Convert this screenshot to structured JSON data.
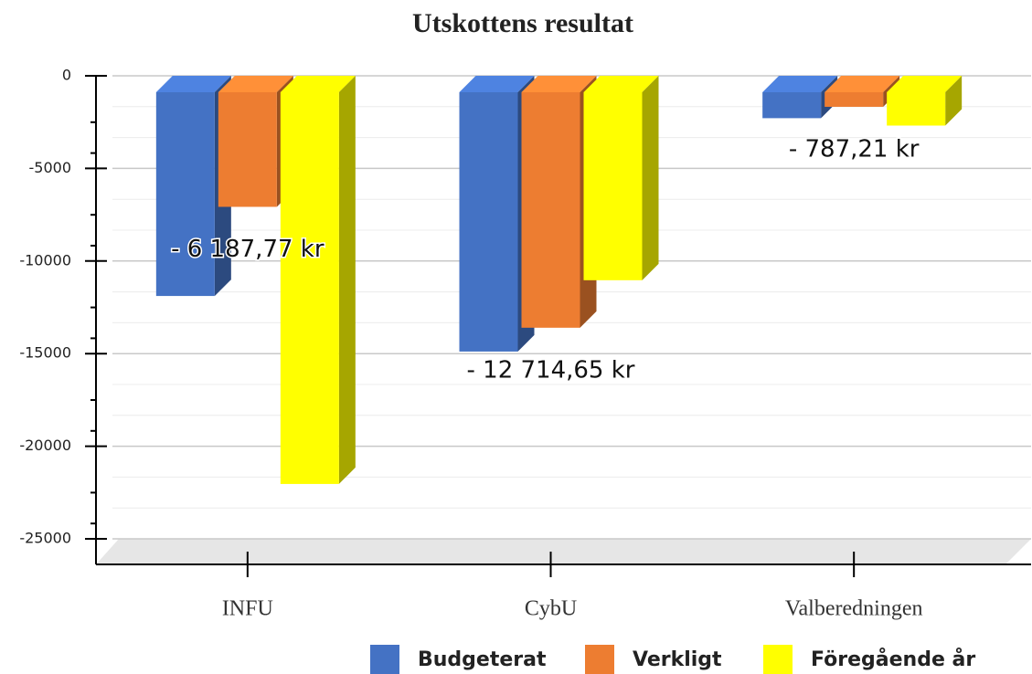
{
  "chart_data": {
    "type": "bar3d",
    "title": "Utskottens resultat",
    "categories": [
      "INFU",
      "CybU",
      "Valberedningen"
    ],
    "series": [
      {
        "name": "Budgeterat",
        "color": "#4472c4",
        "values": [
          -11000,
          -14000,
          -1400
        ]
      },
      {
        "name": "Verkligt",
        "color": "#ed7d31",
        "values": [
          -6187.77,
          -12714.65,
          -787.21
        ],
        "value_labels": [
          "- 6 187,77 kr",
          "- 12 714,65 kr",
          "- 787,21 kr"
        ]
      },
      {
        "name": "Föregående år",
        "color": "#ffff00",
        "values": [
          -21150,
          -10150,
          -1800
        ]
      }
    ],
    "ylim": [
      -25000,
      0
    ],
    "yticks": [
      0,
      -5000,
      -10000,
      -15000,
      -20000,
      -25000
    ],
    "grid": true,
    "legend": "bottom"
  }
}
